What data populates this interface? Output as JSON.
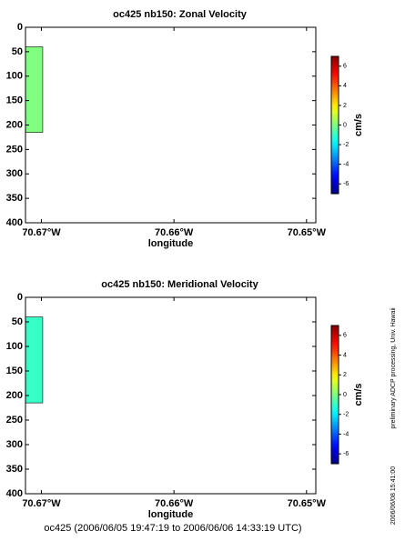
{
  "chart_data": [
    {
      "type": "contour",
      "title": "oc425 nb150: Zonal Velocity",
      "xlabel": "longitude",
      "xlim": [
        70.6712,
        70.6493
      ],
      "ylim": [
        0,
        400
      ],
      "xticks": [
        {
          "value": 70.67,
          "label": "70.67°W"
        },
        {
          "value": 70.66,
          "label": "70.66°W"
        },
        {
          "value": 70.65,
          "label": "70.65°W"
        }
      ],
      "yticks": [
        0,
        50,
        100,
        150,
        200,
        250,
        300,
        350,
        400
      ],
      "x_edges": [
        70.6712,
        70.6699
      ],
      "y_edges": [
        40,
        215
      ],
      "values": [
        [
          0
        ]
      ],
      "clim": [
        -7,
        7
      ],
      "cticks": [
        -6,
        -4,
        -2,
        0,
        2,
        4,
        6
      ],
      "clabel": "cm/s",
      "colormap": "jet"
    },
    {
      "type": "contour",
      "title": "oc425 nb150: Meridional Velocity",
      "xlabel": "longitude",
      "xlim": [
        70.6712,
        70.6493
      ],
      "ylim": [
        0,
        400
      ],
      "xticks": [
        {
          "value": 70.67,
          "label": "70.67°W"
        },
        {
          "value": 70.66,
          "label": "70.66°W"
        },
        {
          "value": 70.65,
          "label": "70.65°W"
        }
      ],
      "yticks": [
        0,
        50,
        100,
        150,
        200,
        250,
        300,
        350,
        400
      ],
      "x_edges": [
        70.6712,
        70.6699
      ],
      "y_edges": [
        40,
        215
      ],
      "values": [
        [
          -1
        ]
      ],
      "clim": [
        -7,
        7
      ],
      "cticks": [
        -6,
        -4,
        -2,
        0,
        2,
        4,
        6
      ],
      "clabel": "cm/s",
      "colormap": "jet"
    }
  ],
  "footer": "oc425 (2006/06/05 19:47:19 to 2006/06/06 14:33:19 UTC)",
  "side_note": "preliminary ADCP processing,  Univ. Hawaii",
  "timestamp": "2006/06/08 15:41:00"
}
